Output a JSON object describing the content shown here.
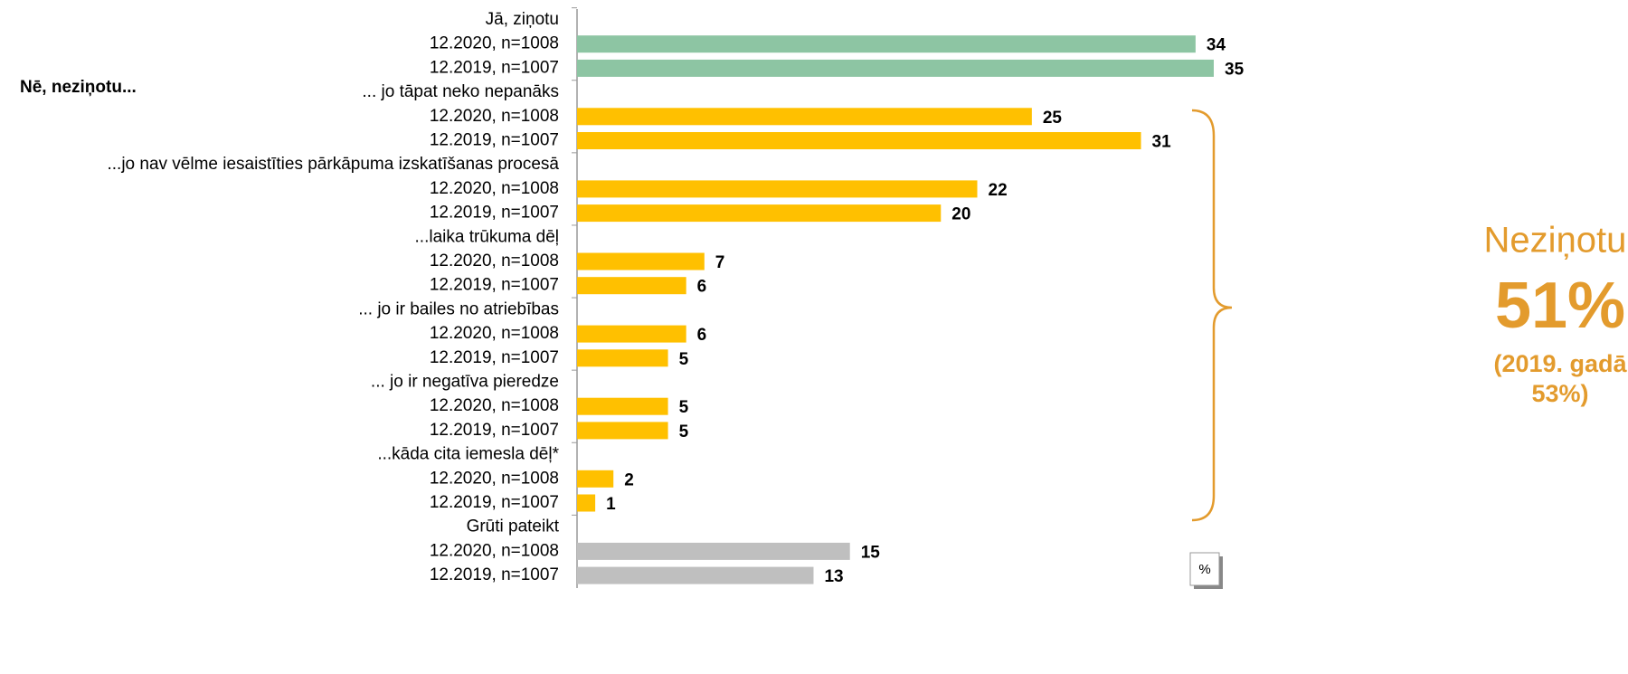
{
  "chart_data": {
    "type": "bar",
    "categories": [
      "Jā, ziņotu",
      "... jo tāpat neko nepanāks",
      "...jo nav vēlme iesaistīties pārkāpuma izskatīšanas procesā",
      "...laika trūkuma dēļ",
      "... jo ir bailes no atriebības",
      "... jo ir negatīva pieredze",
      "...kāda cita iemesla dēļ*",
      "Grūti pateikt"
    ],
    "category_colors": [
      "#8DC5A3",
      "#FFC000",
      "#FFC000",
      "#FFC000",
      "#FFC000",
      "#FFC000",
      "#FFC000",
      "#BFBFBF"
    ],
    "series": [
      {
        "name": "12.2020, n=1008",
        "values": [
          34,
          25,
          22,
          7,
          6,
          5,
          2,
          15
        ]
      },
      {
        "name": "12.2019, n=1007",
        "values": [
          35,
          31,
          20,
          6,
          5,
          5,
          1,
          13
        ]
      }
    ],
    "xlim": [
      0,
      35
    ],
    "group_label": "Nē, neziņotu...",
    "annotations": [
      "Neziņotu:",
      "51%",
      "(2019. gadā",
      "53%)"
    ],
    "unit_label": "%"
  }
}
